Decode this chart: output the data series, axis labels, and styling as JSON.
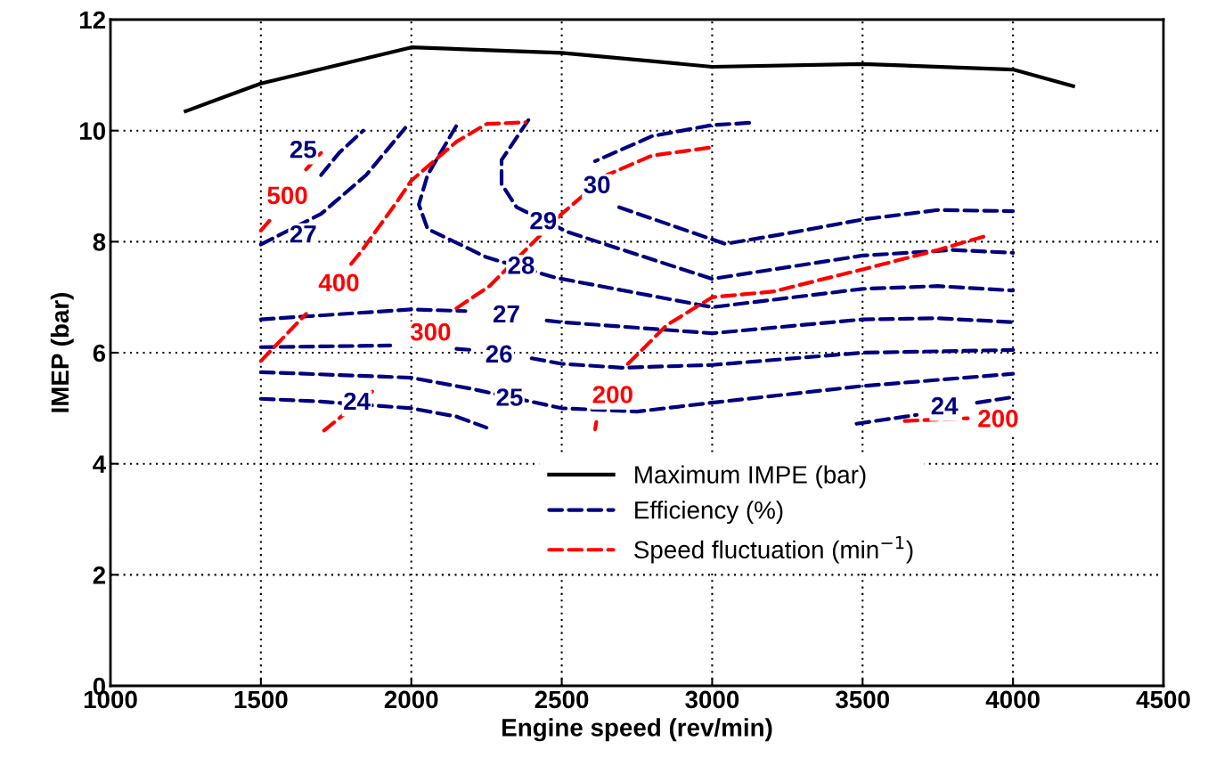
{
  "chart_data": {
    "type": "line",
    "xlabel": "Engine speed (rev/min)",
    "ylabel": "IMEP (bar)",
    "xlim": [
      1000,
      4500
    ],
    "xticks": [
      1000,
      1500,
      2000,
      2500,
      3000,
      3500,
      4000,
      4500
    ],
    "ylim": [
      0,
      12
    ],
    "yticks": [
      0,
      2,
      4,
      6,
      8,
      10,
      12
    ],
    "grid": true,
    "legend": "bottom",
    "series": [
      {
        "name": "Maximum IMPE (bar)",
        "color": "#000000",
        "line_style": "solid",
        "x": [
          1250,
          1500,
          2000,
          2500,
          3000,
          3500,
          4000,
          4200
        ],
        "values": [
          10.35,
          10.85,
          11.5,
          11.4,
          11.15,
          11.2,
          11.1,
          10.8
        ]
      },
      {
        "name": "Efficiency (%)",
        "color": "#000080",
        "line_style": "dashed",
        "x": [
          1500,
          1700,
          2000,
          2150,
          2250
        ],
        "values": [
          5.17,
          5.12,
          5.0,
          4.85,
          4.65
        ]
      },
      {
        "color": "#000080",
        "line_style": "dashed",
        "x": [
          1500,
          2000,
          2200,
          2500,
          2750,
          3000,
          3500,
          4000
        ],
        "values": [
          5.65,
          5.55,
          5.35,
          5.0,
          4.94,
          5.1,
          5.4,
          5.62
        ]
      },
      {
        "color": "#000080",
        "line_style": "dashed",
        "x": [
          1500,
          1800,
          1930,
          2060,
          2150,
          2200,
          2230,
          2400,
          2500,
          2700,
          3000,
          3500,
          4000
        ],
        "values": [
          6.1,
          6.12,
          6.13,
          null,
          6.07,
          6.05,
          null,
          5.9,
          5.8,
          5.73,
          5.78,
          6.0,
          6.05
        ]
      },
      {
        "color": "#000080",
        "line_style": "dashed",
        "x": [
          1500,
          2000,
          2180,
          2300,
          2450,
          2500,
          3000,
          3500,
          3750,
          4000
        ],
        "values": [
          6.6,
          6.78,
          6.75,
          null,
          6.58,
          6.55,
          6.35,
          6.6,
          6.62,
          6.55
        ]
      },
      {
        "color": "#000080",
        "line_style": "dashed",
        "x": [
          2149,
          2054,
          2025,
          2054,
          2250,
          2480,
          3000,
          3500,
          3750,
          4000
        ],
        "values": [
          10.08,
          9.2,
          8.67,
          8.23,
          7.72,
          7.35,
          6.82,
          7.15,
          7.2,
          7.12
        ]
      },
      {
        "color": "#000080",
        "line_style": "dashed",
        "x": [
          2389,
          2300,
          2300,
          2350,
          2522,
          3000,
          3500,
          3800,
          4000
        ],
        "values": [
          10.19,
          9.47,
          9.04,
          8.62,
          8.17,
          7.33,
          7.75,
          7.85,
          7.8
        ]
      },
      {
        "color": "#000080",
        "line_style": "dashed",
        "x": [
          3123,
          3000,
          2800,
          2611
        ],
        "values": [
          10.14,
          10.1,
          9.9,
          9.45
        ]
      },
      {
        "color": "#000080",
        "line_style": "dashed",
        "x": [
          2691,
          3043,
          3250,
          3500,
          3750,
          4000
        ],
        "values": [
          8.62,
          7.96,
          8.15,
          8.4,
          8.57,
          8.55
        ]
      },
      {
        "color": "#000080",
        "line_style": "dashed",
        "x": [
          1500,
          1700,
          1850,
          1980
        ],
        "values": [
          7.95,
          8.5,
          9.2,
          10.05
        ]
      },
      {
        "color": "#000080",
        "line_style": "dashed",
        "x": [
          1700,
          1760,
          1840
        ],
        "values": [
          9.2,
          9.6,
          10.0
        ]
      },
      {
        "color": "#000080",
        "line_style": "dashed",
        "x": [
          3480,
          3680,
          3760,
          3880,
          4000
        ],
        "values": [
          4.72,
          4.88,
          null,
          5.1,
          5.2
        ]
      },
      {
        "name": "Speed fluctuation (min$^{−1}$)",
        "color": "#ff0000",
        "line_style": "dashed",
        "x": [
          2611,
          2615,
          2680,
          2720,
          2850,
          3000,
          3200,
          3500,
          3750,
          3920
        ],
        "values": [
          4.62,
          4.75,
          null,
          5.8,
          6.5,
          7.0,
          7.1,
          7.5,
          7.85,
          8.12
        ]
      },
      {
        "color": "#ff0000",
        "line_style": "dashed",
        "x": [
          3640,
          3850
        ],
        "values": [
          4.77,
          4.82
        ]
      },
      {
        "color": "#ff0000",
        "line_style": "dashed",
        "x": [
          1710,
          1870,
          1900,
          2150,
          2260,
          2500,
          2650,
          2800,
          3000
        ],
        "values": [
          4.6,
          5.3,
          null,
          6.8,
          7.2,
          8.5,
          9.2,
          9.55,
          9.7
        ]
      },
      {
        "color": "#ff0000",
        "line_style": "dashed",
        "x": [
          1500,
          1650,
          1690,
          1800,
          1830,
          1950,
          2000,
          2150,
          2250,
          2380
        ],
        "values": [
          5.85,
          6.7,
          null,
          7.6,
          7.8,
          8.7,
          9.1,
          9.8,
          10.12,
          10.15
        ]
      },
      {
        "color": "#ff0000",
        "line_style": "dashed",
        "x": [
          1500,
          1540,
          1600,
          1650,
          1700
        ],
        "values": [
          8.2,
          8.45,
          null,
          9.3,
          9.6
        ]
      }
    ],
    "annotations": [
      "25",
      "27",
      "29",
      "28",
      "30",
      "27",
      "26",
      "25",
      "24",
      "24",
      "500",
      "400",
      "300",
      "200",
      "200"
    ]
  }
}
